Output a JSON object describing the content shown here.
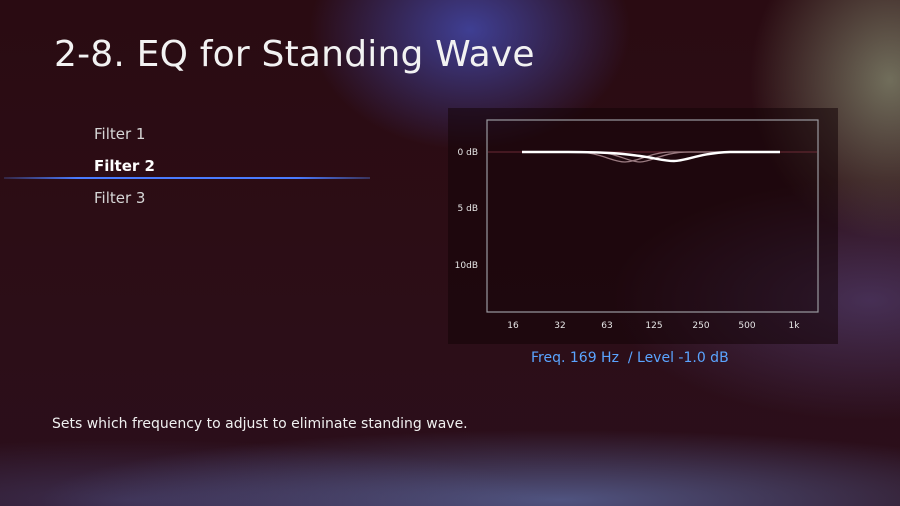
{
  "header": {
    "title": "2-8. EQ for Standing Wave"
  },
  "menu": {
    "items": [
      {
        "label": "Filter 1",
        "selected": false
      },
      {
        "label": "Filter 2",
        "selected": true
      },
      {
        "label": "Filter 3",
        "selected": false
      }
    ]
  },
  "graph": {
    "y_labels": [
      "0 dB",
      "5 dB",
      "10dB"
    ],
    "x_labels": [
      "16",
      "32",
      "63",
      "125",
      "250",
      "500",
      "1k"
    ],
    "colors": {
      "frame": "#9a9aa0",
      "active_curve": "#ffffff",
      "inactive_curve": "#9a7a80",
      "grid": "#6b2a35"
    }
  },
  "readout": {
    "freq": "Freq. 169 Hz",
    "level": "/ Level -1.0 dB"
  },
  "footer": {
    "description": "Sets which frequency to adjust to eliminate standing wave."
  }
}
